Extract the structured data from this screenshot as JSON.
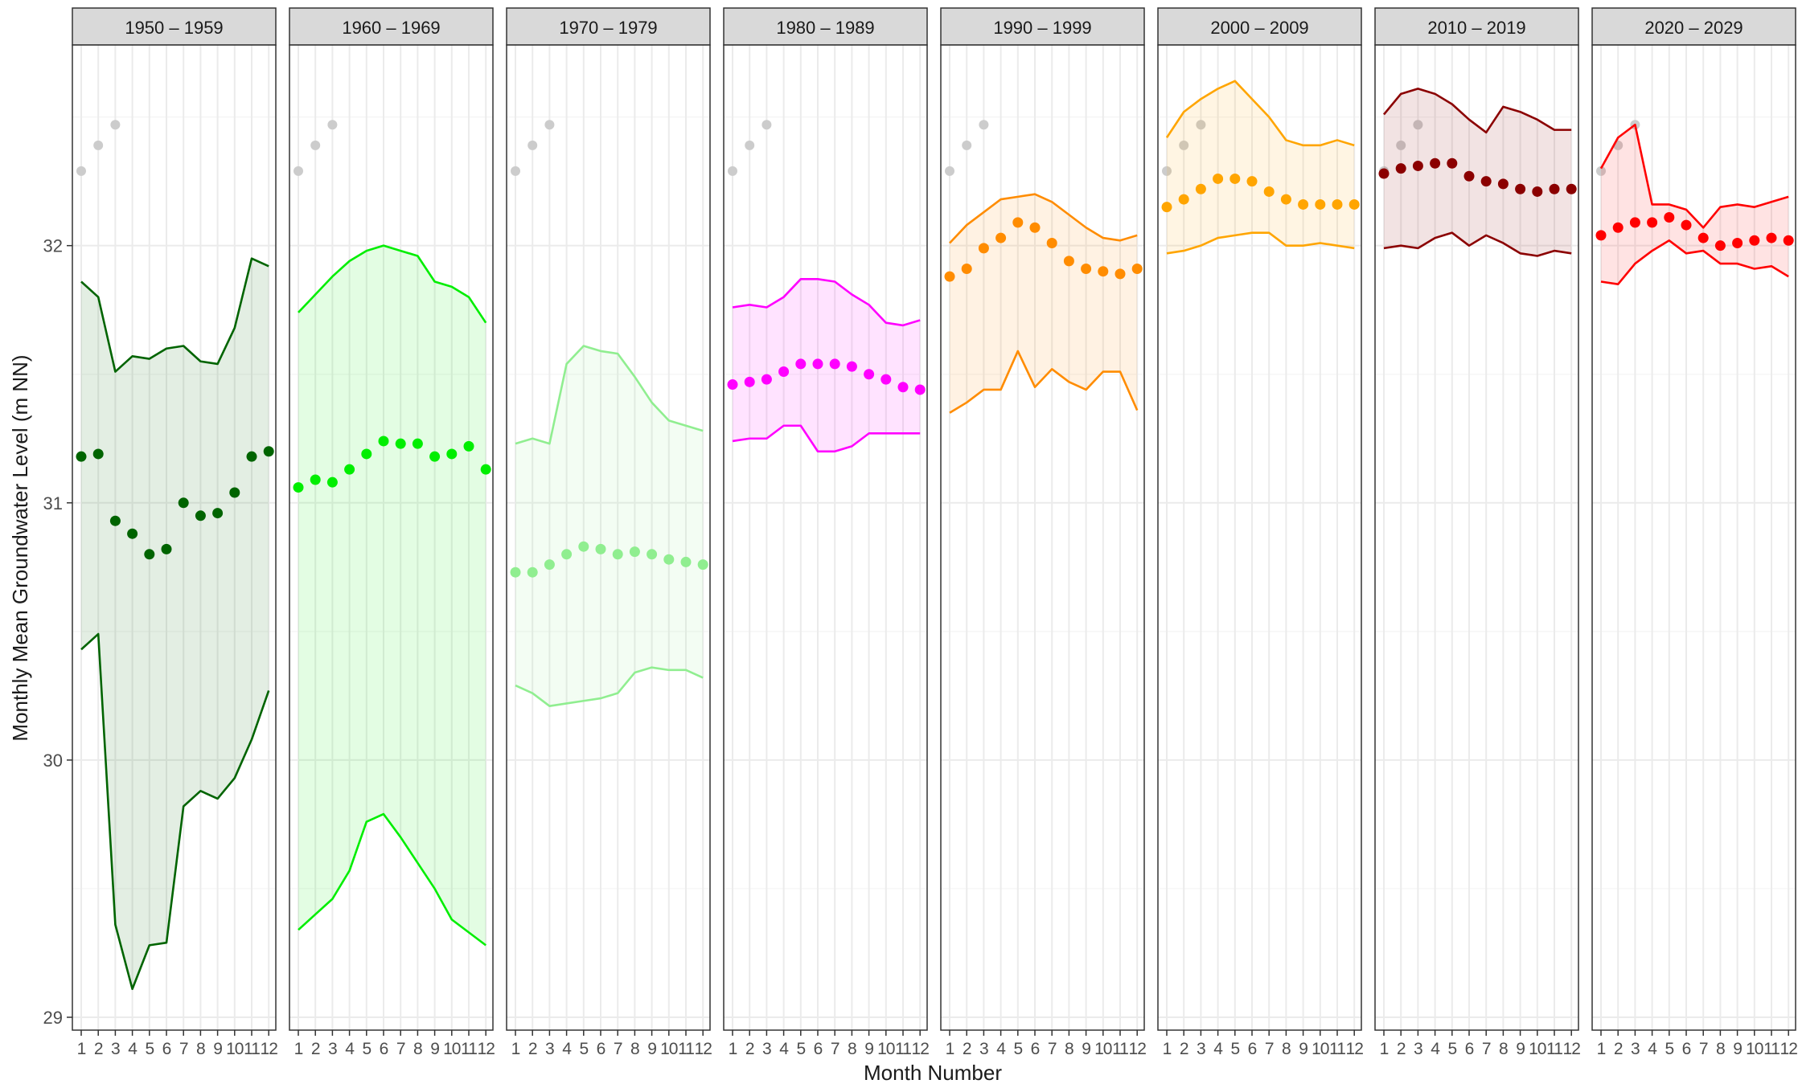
{
  "chart_data": {
    "type": "line",
    "xlabel": "Month Number",
    "ylabel": "Monthly Mean Groundwater Level (m NN)",
    "ylim": [
      28.95,
      32.78
    ],
    "y_ticks": [
      29,
      30,
      31,
      32
    ],
    "x_ticks": [
      1,
      2,
      3,
      4,
      5,
      6,
      7,
      8,
      9,
      10,
      11,
      12
    ],
    "grid": true,
    "reference_points": {
      "color": "#cccccc",
      "x": [
        1,
        2,
        3
      ],
      "y": [
        32.29,
        32.39,
        32.47
      ]
    },
    "panels": [
      {
        "title": "1950 – 1959",
        "color": "#006400",
        "mean": [
          31.18,
          31.19,
          30.93,
          30.88,
          30.8,
          30.82,
          31.0,
          30.95,
          30.96,
          31.04,
          31.18,
          31.2
        ],
        "max": [
          31.86,
          31.8,
          31.51,
          31.57,
          31.56,
          31.6,
          31.61,
          31.55,
          31.54,
          31.68,
          31.95,
          31.92
        ],
        "min": [
          30.43,
          30.49,
          29.36,
          29.11,
          29.28,
          29.29,
          29.82,
          29.88,
          29.85,
          29.93,
          30.08,
          30.27
        ]
      },
      {
        "title": "1960 – 1969",
        "color": "#00ee00",
        "mean": [
          31.06,
          31.09,
          31.08,
          31.13,
          31.19,
          31.24,
          31.23,
          31.23,
          31.18,
          31.19,
          31.22,
          31.13
        ],
        "max": [
          31.74,
          31.81,
          31.88,
          31.94,
          31.98,
          32.0,
          31.98,
          31.96,
          31.86,
          31.84,
          31.8,
          31.7
        ],
        "min": [
          29.34,
          29.4,
          29.46,
          29.57,
          29.76,
          29.79,
          29.7,
          29.6,
          29.5,
          29.38,
          29.33,
          29.28
        ]
      },
      {
        "title": "1970 – 1979",
        "color": "#90ee90",
        "mean": [
          30.73,
          30.73,
          30.76,
          30.8,
          30.83,
          30.82,
          30.8,
          30.81,
          30.8,
          30.78,
          30.77,
          30.76
        ],
        "max": [
          31.23,
          31.25,
          31.23,
          31.54,
          31.61,
          31.59,
          31.58,
          31.49,
          31.39,
          31.32,
          31.3,
          31.28
        ],
        "min": [
          30.29,
          30.26,
          30.21,
          30.22,
          30.23,
          30.24,
          30.26,
          30.34,
          30.36,
          30.35,
          30.35,
          30.32
        ]
      },
      {
        "title": "1980 – 1989",
        "color": "#ff00ff",
        "mean": [
          31.46,
          31.47,
          31.48,
          31.51,
          31.54,
          31.54,
          31.54,
          31.53,
          31.5,
          31.48,
          31.45,
          31.44
        ],
        "max": [
          31.76,
          31.77,
          31.76,
          31.8,
          31.87,
          31.87,
          31.86,
          31.81,
          31.77,
          31.7,
          31.69,
          31.71
        ],
        "min": [
          31.24,
          31.25,
          31.25,
          31.3,
          31.3,
          31.2,
          31.2,
          31.22,
          31.27,
          31.27,
          31.27,
          31.27
        ]
      },
      {
        "title": "1990 – 1999",
        "color": "#ff8c00",
        "mean": [
          31.88,
          31.91,
          31.99,
          32.03,
          32.09,
          32.07,
          32.01,
          31.94,
          31.91,
          31.9,
          31.89,
          31.91
        ],
        "max": [
          32.01,
          32.08,
          32.13,
          32.18,
          32.19,
          32.2,
          32.17,
          32.12,
          32.07,
          32.03,
          32.02,
          32.04
        ],
        "min": [
          31.35,
          31.39,
          31.44,
          31.44,
          31.59,
          31.45,
          31.52,
          31.47,
          31.44,
          31.51,
          31.51,
          31.36
        ]
      },
      {
        "title": "2000 – 2009",
        "color": "#ffa500",
        "mean": [
          32.15,
          32.18,
          32.22,
          32.26,
          32.26,
          32.25,
          32.21,
          32.18,
          32.16,
          32.16,
          32.16,
          32.16
        ],
        "max": [
          32.42,
          32.52,
          32.57,
          32.61,
          32.64,
          32.57,
          32.5,
          32.41,
          32.39,
          32.39,
          32.41,
          32.39
        ],
        "min": [
          31.97,
          31.98,
          32.0,
          32.03,
          32.04,
          32.05,
          32.05,
          32.0,
          32.0,
          32.01,
          32.0,
          31.99
        ]
      },
      {
        "title": "2010 – 2019",
        "color": "#8b0000",
        "mean": [
          32.28,
          32.3,
          32.31,
          32.32,
          32.32,
          32.27,
          32.25,
          32.24,
          32.22,
          32.21,
          32.22,
          32.22
        ],
        "max": [
          32.51,
          32.59,
          32.61,
          32.59,
          32.55,
          32.49,
          32.44,
          32.54,
          32.52,
          32.49,
          32.45,
          32.45
        ],
        "min": [
          31.99,
          32.0,
          31.99,
          32.03,
          32.05,
          32.0,
          32.04,
          32.01,
          31.97,
          31.96,
          31.98,
          31.97
        ]
      },
      {
        "title": "2020 – 2029",
        "color": "#ff0000",
        "mean": [
          32.04,
          32.07,
          32.09,
          32.09,
          32.11,
          32.08,
          32.03,
          32.0,
          32.01,
          32.02,
          32.03,
          32.02
        ],
        "max": [
          32.3,
          32.42,
          32.47,
          32.16,
          32.16,
          32.14,
          32.07,
          32.15,
          32.16,
          32.15,
          32.17,
          32.19
        ],
        "min": [
          31.86,
          31.85,
          31.93,
          31.98,
          32.02,
          31.97,
          31.98,
          31.93,
          31.93,
          31.91,
          31.92,
          31.88
        ]
      }
    ]
  }
}
